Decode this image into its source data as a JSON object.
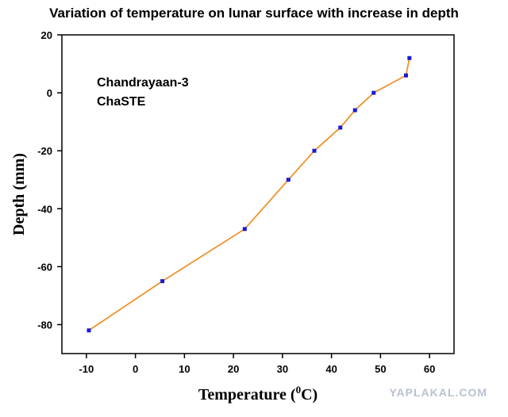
{
  "chart_data": {
    "type": "line",
    "title": "Variation of temperature on lunar surface with increase in depth",
    "xlabel_main": "Temperature (",
    "xlabel_sup": "0",
    "xlabel_tail": "C)",
    "ylabel": "Depth (mm)",
    "xlim": [
      -15,
      65
    ],
    "ylim": [
      -90,
      20
    ],
    "xticks": [
      -10,
      0,
      10,
      20,
      30,
      40,
      50,
      60
    ],
    "yticks": [
      20,
      0,
      -20,
      -40,
      -60,
      -80
    ],
    "annotation": [
      "Chandrayaan-3",
      "ChaSTE"
    ],
    "line_color": "#f0922e",
    "marker_color": "#1a1ad6",
    "series": [
      {
        "x": [
          -9.5,
          5.5,
          22.3,
          31.2,
          36.5,
          41.8,
          44.8,
          48.6,
          55.2,
          55.9
        ],
        "y": [
          -82,
          -65,
          -47,
          -30,
          -20,
          -12,
          -6,
          0,
          6,
          12
        ]
      }
    ],
    "grid": false,
    "legend": "none"
  },
  "watermark": "YAPLAKAL.COM"
}
